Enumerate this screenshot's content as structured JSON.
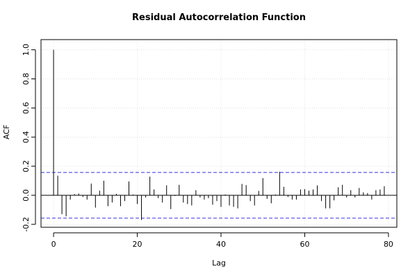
{
  "chart_data": {
    "type": "bar",
    "title": "Residual Autocorrelation Function",
    "xlabel": "Lag",
    "ylabel": "ACF",
    "xlim": [
      -3,
      82
    ],
    "ylim": [
      -0.22,
      1.07
    ],
    "xticks": [
      0,
      20,
      40,
      60,
      80
    ],
    "xtick_labels": [
      "0",
      "20",
      "40",
      "60",
      "80"
    ],
    "yticks": [
      -0.2,
      0.0,
      0.2,
      0.4,
      0.6,
      0.8,
      1.0
    ],
    "ytick_labels": [
      "-0.2",
      "0.0",
      "0.2",
      "0.4",
      "0.6",
      "0.8",
      "1.0"
    ],
    "grid": true,
    "confidence_bounds": [
      0.157,
      -0.157
    ],
    "x": [
      0,
      1,
      2,
      3,
      4,
      5,
      6,
      7,
      8,
      9,
      10,
      11,
      12,
      13,
      14,
      15,
      16,
      17,
      18,
      19,
      20,
      21,
      22,
      23,
      24,
      25,
      26,
      27,
      28,
      29,
      30,
      31,
      32,
      33,
      34,
      35,
      36,
      37,
      38,
      39,
      40,
      41,
      42,
      43,
      44,
      45,
      46,
      47,
      48,
      49,
      50,
      51,
      52,
      53,
      54,
      55,
      56,
      57,
      58,
      59,
      60,
      61,
      62,
      63,
      64,
      65,
      66,
      67,
      68,
      69,
      70,
      71,
      72,
      73,
      74,
      75,
      76,
      77,
      78,
      79
    ],
    "values": [
      1.0,
      0.135,
      -0.13,
      -0.145,
      -0.03,
      0.008,
      0.012,
      -0.012,
      -0.03,
      0.08,
      -0.085,
      0.032,
      0.1,
      -0.075,
      -0.05,
      0.01,
      -0.075,
      -0.04,
      0.095,
      0.005,
      -0.06,
      -0.17,
      -0.015,
      0.128,
      0.04,
      -0.02,
      -0.05,
      0.068,
      -0.095,
      -0.005,
      0.072,
      -0.05,
      -0.06,
      -0.07,
      0.035,
      -0.015,
      -0.03,
      -0.02,
      -0.065,
      -0.04,
      -0.08,
      0.005,
      -0.07,
      -0.08,
      -0.09,
      0.078,
      0.07,
      -0.04,
      -0.07,
      0.03,
      0.118,
      -0.025,
      -0.055,
      0.005,
      0.162,
      0.058,
      -0.012,
      -0.03,
      -0.03,
      0.04,
      0.042,
      0.032,
      0.04,
      0.068,
      -0.04,
      -0.09,
      -0.09,
      -0.035,
      0.055,
      0.072,
      -0.015,
      0.035,
      -0.015,
      0.05,
      0.02,
      0.015,
      -0.03,
      0.035,
      0.04,
      0.062
    ]
  }
}
